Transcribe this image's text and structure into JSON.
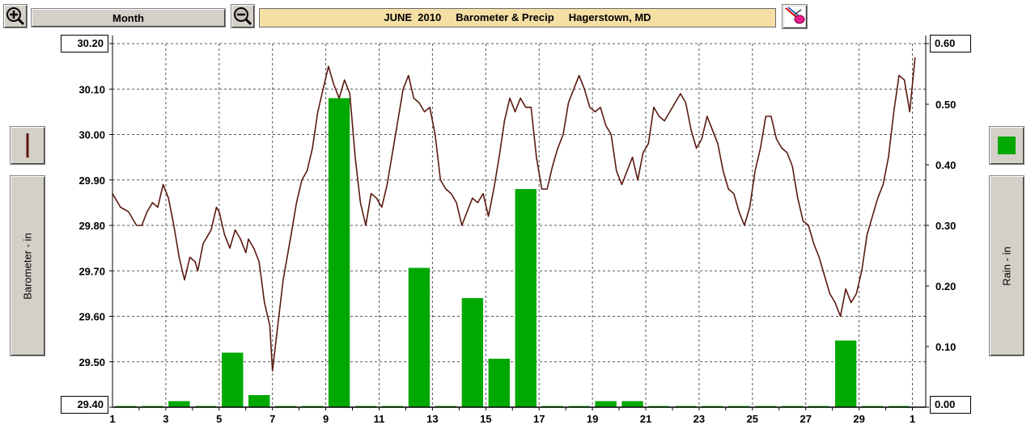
{
  "toolbar": {
    "zoom_in_icon": "zoom-in-icon",
    "zoom_out_icon": "zoom-out-icon",
    "period_label": "Month",
    "title": "JUNE  2010     Barometer & Precip     Hagerstown, MD",
    "paint_icon": "paint-icon"
  },
  "left_panel": {
    "legend_icon": "line-swatch-icon",
    "axis_label": "Barometer - in",
    "line_color": "#5a1a10"
  },
  "right_panel": {
    "legend_icon": "bar-swatch-icon",
    "axis_label": "Rain - in",
    "bar_color": "#00a800"
  },
  "axes": {
    "left_top": "30.20",
    "left_bottom": "29.40",
    "right_top": "0.60",
    "right_bottom": "0.00"
  },
  "chart_data": {
    "type": "bar",
    "title": "JUNE  2010     Barometer & Precip     Hagerstown, MD",
    "xlabel": "",
    "x_ticks": [
      "1",
      "3",
      "5",
      "7",
      "9",
      "11",
      "13",
      "15",
      "17",
      "19",
      "21",
      "23",
      "25",
      "27",
      "29",
      "1"
    ],
    "xlim": [
      1,
      31.5
    ],
    "grid": true,
    "y_left": {
      "label": "Barometer - in",
      "ylim": [
        29.4,
        30.2
      ],
      "ticks": [
        "30.20",
        "30.10",
        "30.00",
        "29.90",
        "29.80",
        "29.70",
        "29.60",
        "29.50",
        "29.40"
      ]
    },
    "y_right": {
      "label": "Rain - in",
      "ylim": [
        0.0,
        0.6
      ],
      "ticks": [
        "0.60",
        "0.50",
        "0.40",
        "0.30",
        "0.20",
        "0.10",
        "0.00"
      ]
    },
    "series": [
      {
        "name": "Rain - in",
        "type": "bar",
        "axis": "right",
        "x": [
          1,
          2,
          3,
          4,
          5,
          6,
          7,
          8,
          9,
          10,
          11,
          12,
          13,
          14,
          15,
          16,
          17,
          18,
          19,
          20,
          21,
          22,
          23,
          24,
          25,
          26,
          27,
          28,
          29,
          30
        ],
        "values": [
          0,
          0,
          0.01,
          0,
          0.09,
          0.02,
          0,
          0,
          0.51,
          0,
          0,
          0.23,
          0,
          0.18,
          0.08,
          0.36,
          0,
          0,
          0.01,
          0.01,
          0,
          0,
          0,
          0,
          0,
          0,
          0,
          0.11,
          0,
          0
        ]
      },
      {
        "name": "Barometer - in",
        "type": "line",
        "axis": "left",
        "points": [
          [
            1.0,
            29.87
          ],
          [
            1.3,
            29.84
          ],
          [
            1.6,
            29.83
          ],
          [
            1.9,
            29.8
          ],
          [
            2.1,
            29.8
          ],
          [
            2.3,
            29.83
          ],
          [
            2.5,
            29.85
          ],
          [
            2.7,
            29.84
          ],
          [
            2.9,
            29.89
          ],
          [
            3.1,
            29.86
          ],
          [
            3.3,
            29.8
          ],
          [
            3.5,
            29.73
          ],
          [
            3.7,
            29.68
          ],
          [
            3.9,
            29.73
          ],
          [
            4.1,
            29.72
          ],
          [
            4.2,
            29.7
          ],
          [
            4.4,
            29.76
          ],
          [
            4.7,
            29.79
          ],
          [
            4.9,
            29.84
          ],
          [
            5.0,
            29.83
          ],
          [
            5.2,
            29.78
          ],
          [
            5.4,
            29.75
          ],
          [
            5.6,
            29.79
          ],
          [
            5.8,
            29.77
          ],
          [
            6.0,
            29.74
          ],
          [
            6.1,
            29.77
          ],
          [
            6.3,
            29.75
          ],
          [
            6.5,
            29.72
          ],
          [
            6.7,
            29.63
          ],
          [
            6.9,
            29.58
          ],
          [
            7.0,
            29.48
          ],
          [
            7.2,
            29.58
          ],
          [
            7.4,
            29.68
          ],
          [
            7.7,
            29.78
          ],
          [
            7.9,
            29.85
          ],
          [
            8.1,
            29.9
          ],
          [
            8.3,
            29.92
          ],
          [
            8.5,
            29.97
          ],
          [
            8.7,
            30.05
          ],
          [
            8.9,
            30.1
          ],
          [
            9.1,
            30.15
          ],
          [
            9.3,
            30.11
          ],
          [
            9.5,
            30.08
          ],
          [
            9.7,
            30.12
          ],
          [
            9.9,
            30.09
          ],
          [
            10.1,
            29.95
          ],
          [
            10.3,
            29.85
          ],
          [
            10.5,
            29.8
          ],
          [
            10.7,
            29.87
          ],
          [
            10.9,
            29.86
          ],
          [
            11.1,
            29.84
          ],
          [
            11.3,
            29.89
          ],
          [
            11.5,
            29.96
          ],
          [
            11.7,
            30.03
          ],
          [
            11.9,
            30.1
          ],
          [
            12.1,
            30.13
          ],
          [
            12.3,
            30.08
          ],
          [
            12.5,
            30.07
          ],
          [
            12.7,
            30.05
          ],
          [
            12.9,
            30.06
          ],
          [
            13.1,
            30.0
          ],
          [
            13.3,
            29.9
          ],
          [
            13.5,
            29.88
          ],
          [
            13.7,
            29.87
          ],
          [
            13.9,
            29.85
          ],
          [
            14.1,
            29.8
          ],
          [
            14.3,
            29.83
          ],
          [
            14.5,
            29.86
          ],
          [
            14.7,
            29.85
          ],
          [
            14.9,
            29.87
          ],
          [
            15.1,
            29.82
          ],
          [
            15.3,
            29.88
          ],
          [
            15.5,
            29.95
          ],
          [
            15.7,
            30.03
          ],
          [
            15.9,
            30.08
          ],
          [
            16.1,
            30.05
          ],
          [
            16.3,
            30.08
          ],
          [
            16.5,
            30.06
          ],
          [
            16.7,
            30.06
          ],
          [
            16.9,
            29.95
          ],
          [
            17.1,
            29.88
          ],
          [
            17.3,
            29.88
          ],
          [
            17.5,
            29.93
          ],
          [
            17.7,
            29.97
          ],
          [
            17.9,
            30.0
          ],
          [
            18.1,
            30.07
          ],
          [
            18.3,
            30.1
          ],
          [
            18.5,
            30.13
          ],
          [
            18.7,
            30.1
          ],
          [
            18.9,
            30.06
          ],
          [
            19.1,
            30.05
          ],
          [
            19.3,
            30.06
          ],
          [
            19.5,
            30.02
          ],
          [
            19.7,
            30.0
          ],
          [
            19.9,
            29.92
          ],
          [
            20.1,
            29.89
          ],
          [
            20.3,
            29.92
          ],
          [
            20.5,
            29.95
          ],
          [
            20.7,
            29.9
          ],
          [
            20.9,
            29.96
          ],
          [
            21.1,
            29.98
          ],
          [
            21.3,
            30.06
          ],
          [
            21.5,
            30.04
          ],
          [
            21.7,
            30.03
          ],
          [
            21.9,
            30.05
          ],
          [
            22.1,
            30.07
          ],
          [
            22.3,
            30.09
          ],
          [
            22.5,
            30.07
          ],
          [
            22.7,
            30.01
          ],
          [
            22.9,
            29.97
          ],
          [
            23.1,
            29.99
          ],
          [
            23.3,
            30.04
          ],
          [
            23.5,
            30.01
          ],
          [
            23.7,
            29.98
          ],
          [
            23.9,
            29.92
          ],
          [
            24.1,
            29.88
          ],
          [
            24.3,
            29.87
          ],
          [
            24.5,
            29.83
          ],
          [
            24.7,
            29.8
          ],
          [
            24.9,
            29.84
          ],
          [
            25.1,
            29.92
          ],
          [
            25.3,
            29.97
          ],
          [
            25.5,
            30.04
          ],
          [
            25.7,
            30.04
          ],
          [
            25.9,
            29.99
          ],
          [
            26.1,
            29.97
          ],
          [
            26.3,
            29.96
          ],
          [
            26.5,
            29.93
          ],
          [
            26.7,
            29.86
          ],
          [
            26.9,
            29.81
          ],
          [
            27.1,
            29.8
          ],
          [
            27.3,
            29.76
          ],
          [
            27.5,
            29.73
          ],
          [
            27.7,
            29.69
          ],
          [
            27.9,
            29.65
          ],
          [
            28.1,
            29.63
          ],
          [
            28.3,
            29.6
          ],
          [
            28.5,
            29.66
          ],
          [
            28.7,
            29.63
          ],
          [
            28.9,
            29.65
          ],
          [
            29.1,
            29.7
          ],
          [
            29.3,
            29.78
          ],
          [
            29.5,
            29.82
          ],
          [
            29.7,
            29.86
          ],
          [
            29.9,
            29.89
          ],
          [
            30.1,
            29.95
          ],
          [
            30.3,
            30.05
          ],
          [
            30.5,
            30.13
          ],
          [
            30.7,
            30.12
          ],
          [
            30.9,
            30.05
          ],
          [
            31.1,
            30.17
          ]
        ]
      }
    ]
  }
}
